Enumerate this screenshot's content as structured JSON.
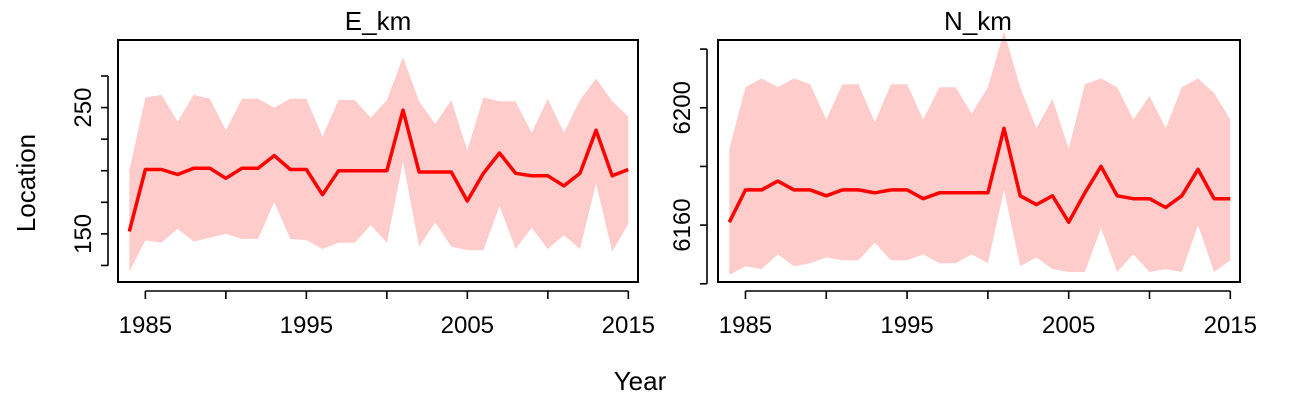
{
  "figure": {
    "xlabel": "Year",
    "ylabel": "Location"
  },
  "chart_data": [
    {
      "type": "line",
      "title": "E_km",
      "xlabel": "Year",
      "ylabel": "Location",
      "x": [
        1984,
        1985,
        1986,
        1987,
        1988,
        1989,
        1990,
        1991,
        1992,
        1993,
        1994,
        1995,
        1996,
        1997,
        1998,
        1999,
        2000,
        2001,
        2002,
        2003,
        2004,
        2005,
        2006,
        2007,
        2008,
        2009,
        2010,
        2011,
        2012,
        2013,
        2014,
        2015
      ],
      "xticks": [
        1985,
        1995,
        2005,
        2015
      ],
      "xminor": [
        1990,
        2000,
        2010
      ],
      "xlim": [
        1983.3,
        2015.6
      ],
      "yticks": [
        150,
        250
      ],
      "yminor": [
        125,
        175,
        200,
        225,
        275
      ],
      "ylim": [
        111.9,
        303.5
      ],
      "series": [
        {
          "role": "estimate",
          "values": [
            152,
            201,
            201,
            197,
            202,
            202,
            194,
            202,
            202,
            212,
            201,
            201,
            181,
            200,
            200,
            200,
            200,
            248,
            199,
            199,
            199,
            176,
            198,
            214,
            198,
            196,
            196,
            188,
            198,
            232,
            196,
            201
          ]
        },
        {
          "role": "upper",
          "values": [
            200,
            258,
            260,
            239,
            260,
            257,
            232,
            257,
            257,
            250,
            257,
            257,
            227,
            256,
            256,
            242,
            256,
            290,
            255,
            237,
            256,
            216,
            258,
            255,
            255,
            230,
            257,
            230,
            256,
            273,
            255,
            243
          ]
        },
        {
          "role": "lower",
          "values": [
            120,
            145,
            143,
            154,
            144,
            147,
            150,
            146,
            146,
            175,
            146,
            145,
            138,
            143,
            143,
            157,
            143,
            207,
            140,
            159,
            140,
            137,
            137,
            172,
            138,
            155,
            138,
            149,
            138,
            190,
            136,
            158
          ]
        }
      ],
      "colors": {
        "line": "#ff0000",
        "band": "#ffcccc"
      },
      "grid": false
    },
    {
      "type": "line",
      "title": "N_km",
      "xlabel": "Year",
      "ylabel": "Location",
      "x": [
        1984,
        1985,
        1986,
        1987,
        1988,
        1989,
        1990,
        1991,
        1992,
        1993,
        1994,
        1995,
        1996,
        1997,
        1998,
        1999,
        2000,
        2001,
        2002,
        2003,
        2004,
        2005,
        2006,
        2007,
        2008,
        2009,
        2010,
        2011,
        2012,
        2013,
        2014,
        2015
      ],
      "xticks": [
        1985,
        1995,
        2005,
        2015
      ],
      "xminor": [
        1990,
        2000,
        2010
      ],
      "xlim": [
        1983.3,
        2015.6
      ],
      "yticks": [
        6160,
        6200
      ],
      "yminor": [
        6140,
        6180,
        6220
      ],
      "ylim": [
        6140.6,
        6223.1
      ],
      "series": [
        {
          "role": "estimate",
          "values": [
            6161,
            6172,
            6172,
            6175,
            6172,
            6172,
            6170,
            6172,
            6172,
            6171,
            6172,
            6172,
            6169,
            6171,
            6171,
            6171,
            6171,
            6193,
            6170,
            6167,
            6170,
            6161,
            6171,
            6180,
            6170,
            6169,
            6169,
            6166,
            6170,
            6179,
            6169,
            6169
          ]
        },
        {
          "role": "upper",
          "values": [
            6186,
            6207,
            6210,
            6207,
            6210,
            6208,
            6196,
            6208,
            6208,
            6195,
            6208,
            6208,
            6196,
            6207,
            6207,
            6198,
            6207,
            6226,
            6207,
            6193,
            6203,
            6186,
            6208,
            6210,
            6207,
            6196,
            6204,
            6193,
            6207,
            6210,
            6205,
            6196
          ]
        },
        {
          "role": "lower",
          "values": [
            6143,
            6146,
            6145,
            6150,
            6146,
            6147,
            6149,
            6148,
            6148,
            6154,
            6148,
            6148,
            6150,
            6147,
            6147,
            6150,
            6147,
            6172,
            6146,
            6149,
            6145,
            6144,
            6144,
            6159,
            6144,
            6150,
            6144,
            6145,
            6144,
            6160,
            6144,
            6148
          ]
        }
      ],
      "colors": {
        "line": "#ff0000",
        "band": "#ffcccc"
      },
      "grid": false
    }
  ]
}
